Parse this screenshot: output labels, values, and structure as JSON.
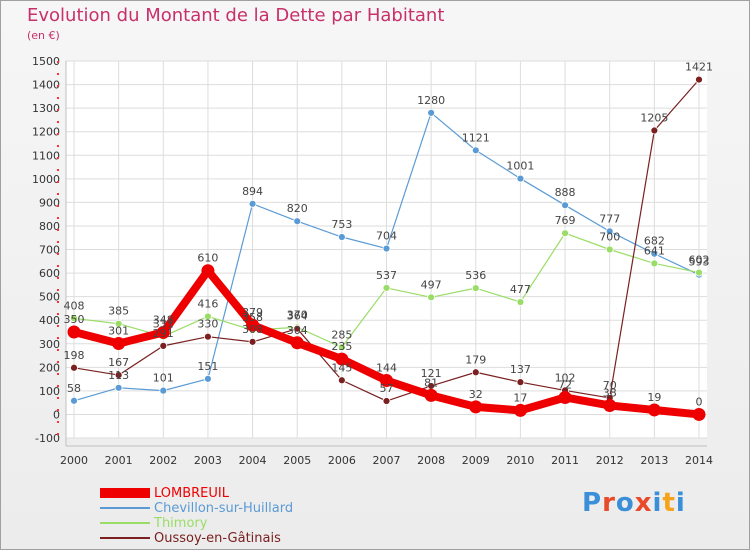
{
  "chart_data": {
    "type": "line",
    "title": "Evolution du Montant de la Dette par Habitant",
    "subtitle": "(en €)",
    "x": [
      "2000",
      "2001",
      "2002",
      "2003",
      "2004",
      "2005",
      "2006",
      "2007",
      "2008",
      "2009",
      "2010",
      "2011",
      "2012",
      "2013",
      "2014"
    ],
    "yticks": [
      -100,
      0,
      100,
      200,
      300,
      400,
      500,
      600,
      700,
      800,
      900,
      1000,
      1100,
      1200,
      1300,
      1400,
      1500
    ],
    "ylim": [
      -100,
      1500
    ],
    "grid": true,
    "legend_position": "bottom-left",
    "series": [
      {
        "name": "LOMBREUIL",
        "color": "#ee0000",
        "values": [
          350,
          301,
          348,
          610,
          379,
          304,
          235,
          144,
          81,
          32,
          17,
          72,
          38,
          19,
          0
        ]
      },
      {
        "name": "Chevillon-sur-Huillard",
        "color": "#5b9bd5",
        "values": [
          58,
          113,
          101,
          151,
          894,
          820,
          753,
          704,
          1280,
          1121,
          1001,
          888,
          777,
          682,
          593
        ]
      },
      {
        "name": "Thimory",
        "color": "#99dd66",
        "values": [
          408,
          385,
          331,
          416,
          358,
          370,
          285,
          537,
          497,
          536,
          477,
          769,
          700,
          641,
          602
        ]
      },
      {
        "name": "Oussoy-en-Gâtinais",
        "color": "#7a2020",
        "values": [
          198,
          167,
          291,
          330,
          308,
          364,
          145,
          57,
          121,
          179,
          137,
          102,
          70,
          1205,
          1421
        ]
      }
    ]
  },
  "logo": {
    "text": "Proxiti",
    "colors": [
      "#3a8fd8",
      "#e84a2a",
      "#3a8fd8",
      "#e84a2a",
      "#3a8fd8",
      "#f7a21b",
      "#3a8fd8"
    ]
  }
}
